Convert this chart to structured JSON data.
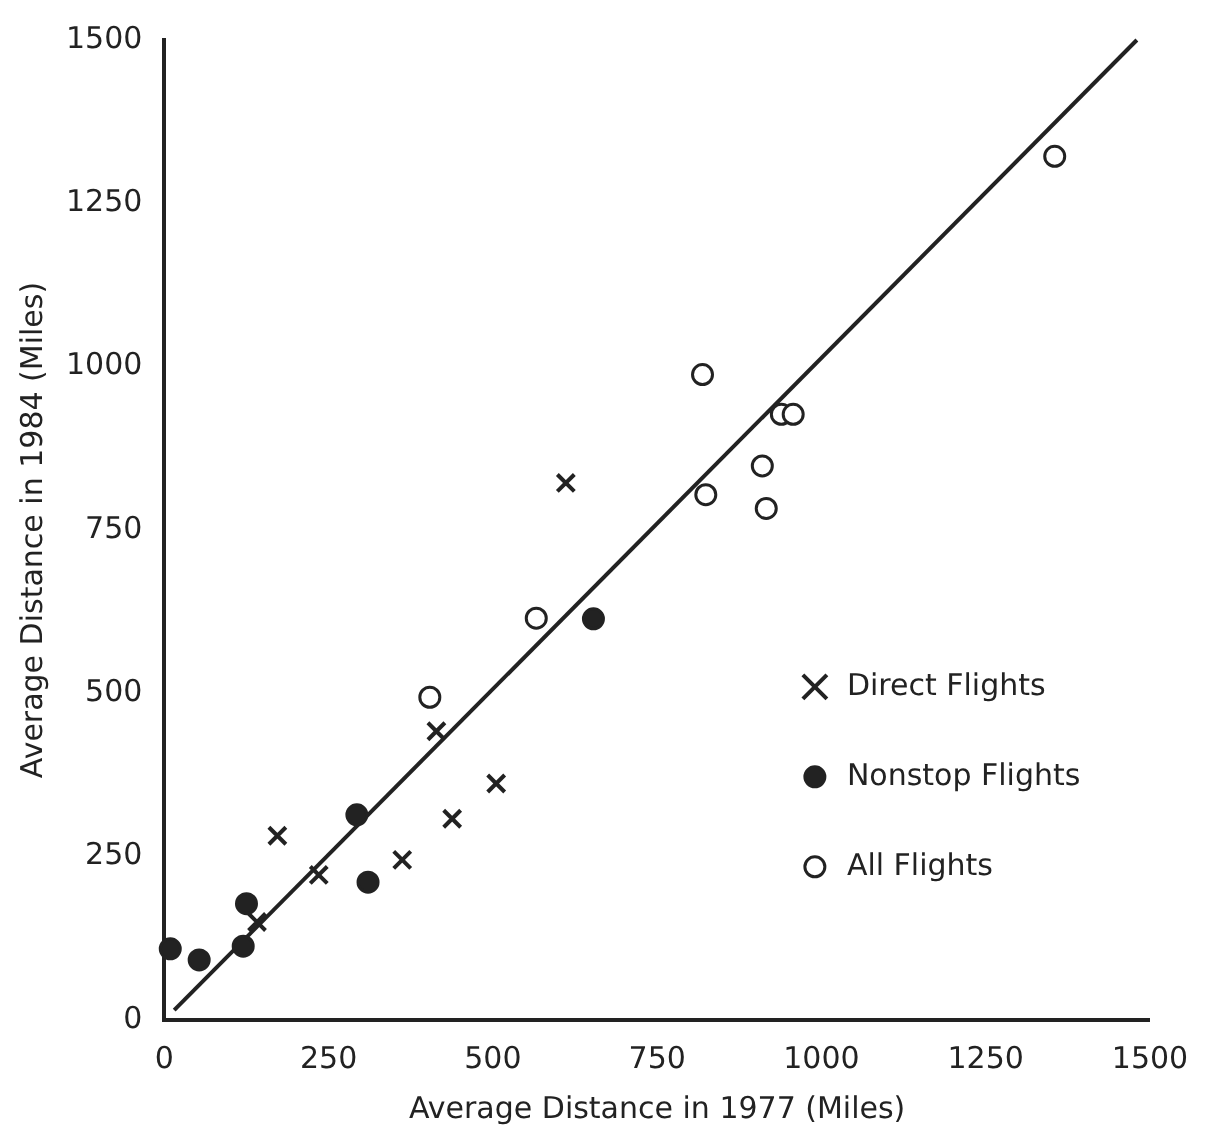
{
  "chart_data": {
    "type": "scatter",
    "xlabel": "Average Distance in 1977 (Miles)",
    "ylabel": "Average Distance in 1984 (Miles)",
    "xlim": [
      0,
      1500
    ],
    "ylim": [
      0,
      1500
    ],
    "xticks": [
      0,
      250,
      500,
      750,
      1000,
      1250,
      1500
    ],
    "yticks": [
      0,
      250,
      500,
      750,
      1000,
      1250,
      1500
    ],
    "grid": false,
    "legend": "right",
    "series": [
      {
        "name": "Direct Flights",
        "color": "#222222",
        "marker": "cross",
        "x": [
          141,
          172,
          235,
          362,
          438,
          505,
          414,
          611
        ],
        "values": [
          150,
          282,
          222,
          245,
          308,
          362,
          442,
          822
        ]
      },
      {
        "name": "Nonstop Flights",
        "color": "#222222",
        "marker": "circle",
        "x": [
          9,
          53,
          120,
          125,
          293,
          310,
          653
        ],
        "values": [
          109,
          92,
          113,
          178,
          314,
          211,
          614
        ]
      },
      {
        "name": "All Flights",
        "color": "#ffffff",
        "marker": "circle",
        "x": [
          404,
          566,
          819,
          824,
          910,
          916,
          939,
          957,
          1355
        ],
        "values": [
          494,
          615,
          988,
          804,
          848,
          783,
          927,
          927,
          1322
        ]
      },
      {
        "type": "line",
        "color": "#222222",
        "marker": "none",
        "x": [
          15,
          1480
        ],
        "values": [
          15,
          1500
        ]
      }
    ]
  }
}
